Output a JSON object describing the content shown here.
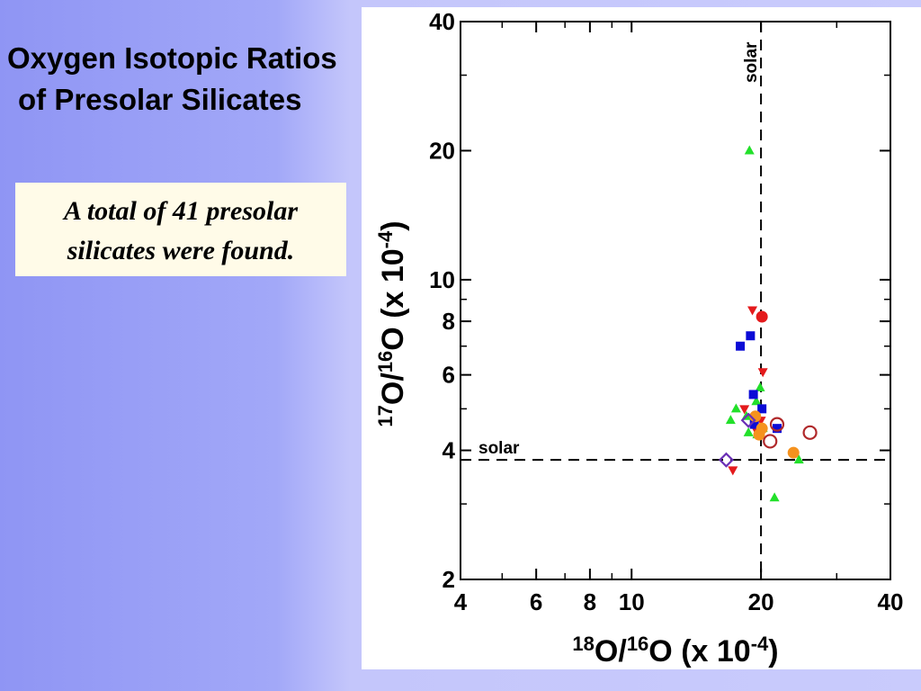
{
  "slide": {
    "title_line1": "Oxygen Isotopic Ratios",
    "title_line2": "of Presolar Silicates",
    "note_line1": "A total of 41 presolar",
    "note_line2": "silicates were found."
  },
  "chart_data": {
    "type": "scatter",
    "xscale": "log",
    "yscale": "log",
    "xlim": [
      4,
      40
    ],
    "ylim": [
      2,
      40
    ],
    "x_ticks": [
      4,
      6,
      8,
      10,
      20,
      40
    ],
    "y_ticks": [
      2,
      4,
      6,
      8,
      10,
      20,
      40
    ],
    "xlabel": {
      "iso_a": "18",
      "base_a": "O/",
      "iso_b": "16",
      "base_b": "O (x 10",
      "exp": "-4",
      "close": ")"
    },
    "ylabel": {
      "iso_a": "17",
      "base_a": "O/",
      "iso_b": "16",
      "base_b": "O (x 10",
      "exp": "-4",
      "close": ")"
    },
    "grid": false,
    "reference_lines": [
      {
        "orientation": "vertical",
        "value": 20,
        "label": "solar"
      },
      {
        "orientation": "horizontal",
        "value": 3.8,
        "label": "solar"
      }
    ],
    "colors": {
      "green": "#22e02a",
      "red": "#e41a1c",
      "blue": "#0b0bd6",
      "orange": "#f5921e",
      "brown": "#b0282a",
      "purple": "#6a2fb5"
    },
    "series": [
      {
        "marker": "triangle-up",
        "color": "green",
        "filled": true,
        "points": [
          [
            18.8,
            20.0
          ],
          [
            19.9,
            5.6
          ],
          [
            17.5,
            5.0
          ],
          [
            19.5,
            5.2
          ],
          [
            18.5,
            4.8
          ],
          [
            17.0,
            4.7
          ],
          [
            20.2,
            4.5
          ],
          [
            18.7,
            4.4
          ],
          [
            19.6,
            4.35
          ],
          [
            24.5,
            3.8
          ],
          [
            21.5,
            3.1
          ]
        ]
      },
      {
        "marker": "triangle-down",
        "color": "red",
        "filled": true,
        "points": [
          [
            19.1,
            8.5
          ],
          [
            20.2,
            6.1
          ],
          [
            18.3,
            5.0
          ],
          [
            20.0,
            4.7
          ],
          [
            19.5,
            4.45
          ],
          [
            17.2,
            3.6
          ]
        ]
      },
      {
        "marker": "circle",
        "color": "red",
        "filled": true,
        "points": [
          [
            20.1,
            8.2
          ]
        ]
      },
      {
        "marker": "square",
        "color": "blue",
        "filled": true,
        "points": [
          [
            18.9,
            7.4
          ],
          [
            17.9,
            7.0
          ],
          [
            19.2,
            5.4
          ],
          [
            20.1,
            5.0
          ],
          [
            21.8,
            4.5
          ],
          [
            19.3,
            4.6
          ]
        ]
      },
      {
        "marker": "circle",
        "color": "orange",
        "filled": true,
        "points": [
          [
            19.4,
            4.8
          ],
          [
            20.1,
            4.5
          ],
          [
            19.8,
            4.35
          ],
          [
            23.8,
            3.95
          ]
        ]
      },
      {
        "marker": "circle",
        "color": "brown",
        "filled": false,
        "points": [
          [
            21.8,
            4.6
          ],
          [
            21.0,
            4.2
          ],
          [
            26.0,
            4.4
          ]
        ]
      },
      {
        "marker": "diamond",
        "color": "purple",
        "filled": false,
        "points": [
          [
            18.7,
            4.7
          ],
          [
            16.6,
            3.8
          ]
        ]
      }
    ]
  }
}
